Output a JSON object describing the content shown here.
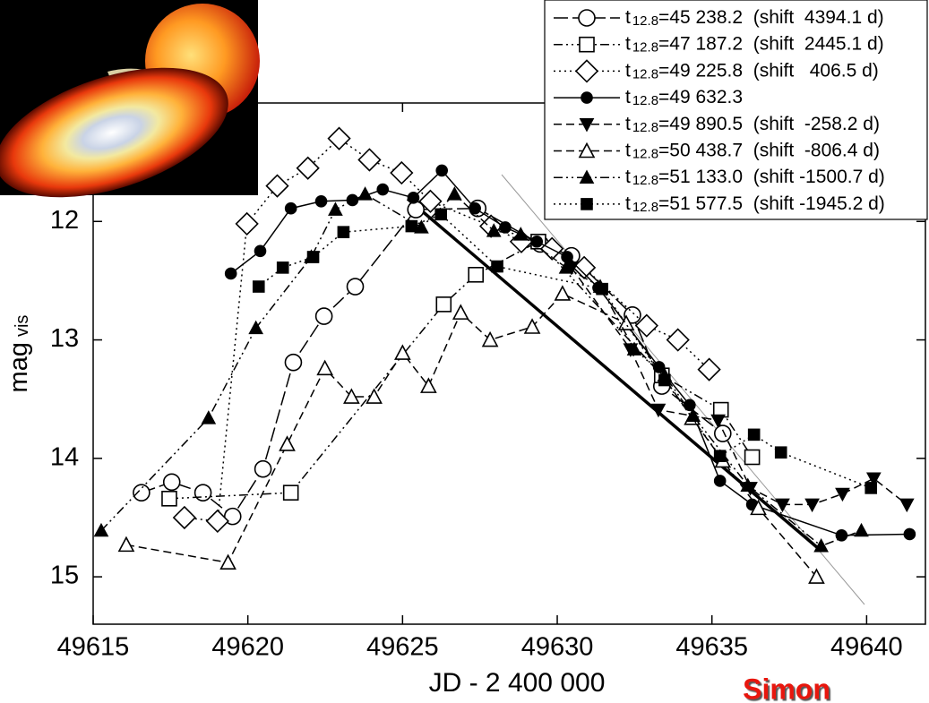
{
  "chart_data": {
    "type": "line",
    "xlabel": "JD - 2 400 000",
    "ylabel": "mag",
    "ylabel_subscript": "vis",
    "legend_symbol": "t",
    "legend_subscript": "12.8",
    "credit": "Simon",
    "xlim": [
      49615,
      49641.9
    ],
    "ylim": [
      11.0,
      15.4
    ],
    "y_inverted": true,
    "xticks": [
      49615,
      49620,
      49625,
      49630,
      49635,
      49640
    ],
    "yticks": [
      12,
      13,
      14,
      15
    ],
    "legend": "top-right",
    "series": [
      {
        "name": "=45 238.2  (shift  4394.1 d)",
        "color": "#000000",
        "marker": "open-circle",
        "linestyle": "longdash",
        "x": [
          49616.56,
          49617.54,
          49618.55,
          49619.51,
          49620.49,
          49621.47,
          49622.46,
          49623.47,
          49625.43,
          49627.43,
          49629.45,
          49630.46,
          49632.43,
          49633.38,
          49635.35
        ],
        "values": [
          14.29,
          14.2,
          14.29,
          14.49,
          14.09,
          13.19,
          12.8,
          12.55,
          11.9,
          11.89,
          12.19,
          12.29,
          12.79,
          13.39,
          13.79
        ]
      },
      {
        "name": "=47 187.2  (shift  2445.1 d)",
        "color": "#000000",
        "marker": "open-square",
        "linestyle": "dashdotdot",
        "x": [
          49617.46,
          49621.39,
          49626.33,
          49627.37,
          49629.39,
          49633.38,
          49635.29,
          49636.3
        ],
        "values": [
          14.34,
          14.29,
          12.7,
          12.45,
          12.17,
          13.3,
          13.59,
          13.99
        ]
      },
      {
        "name": "=49 225.8  (shift   406.5 d)",
        "color": "#000000",
        "marker": "open-diamond",
        "linestyle": "dotted",
        "x": [
          49617.95,
          49619.02,
          49619.97,
          49620.95,
          49621.94,
          49622.95,
          49623.93,
          49624.97,
          49625.9,
          49627.86,
          49628.84,
          49629.83,
          49630.87,
          49632.89,
          49633.9,
          49634.91
        ],
        "values": [
          14.5,
          14.53,
          12.02,
          11.7,
          11.55,
          11.3,
          11.48,
          11.59,
          11.83,
          12.04,
          12.17,
          12.23,
          12.39,
          12.88,
          13.0,
          13.25
        ]
      },
      {
        "name": "=49 632.3",
        "color": "#000000",
        "marker": "filled-circle",
        "linestyle": "solid",
        "x": [
          49619.45,
          49620.4,
          49621.39,
          49622.37,
          49623.38,
          49624.36,
          49625.35,
          49626.27,
          49627.34,
          49628.32,
          49629.34,
          49630.32,
          49631.33,
          49633.29,
          49634.28,
          49635.26,
          49636.3,
          49639.19,
          49641.39
        ],
        "values": [
          12.44,
          12.25,
          11.89,
          11.83,
          11.82,
          11.73,
          11.8,
          11.57,
          11.89,
          12.05,
          12.17,
          12.3,
          12.56,
          13.23,
          13.55,
          14.19,
          14.39,
          14.65,
          14.64
        ]
      },
      {
        "name": "=49 890.5  (shift  -258.2 d)",
        "color": "#000000",
        "marker": "filled-down-triangle",
        "linestyle": "dashed",
        "x": [
          49630.46,
          49632.37,
          49633.27,
          49635.2,
          49636.24,
          49637.28,
          49638.24,
          49639.22,
          49640.23,
          49641.3
        ],
        "values": [
          12.39,
          13.08,
          13.59,
          13.68,
          14.25,
          14.39,
          14.39,
          14.3,
          14.17,
          14.39
        ]
      },
      {
        "name": "=50 438.7  (shift  -806.4 d)",
        "color": "#000000",
        "marker": "open-up-triangle",
        "linestyle": "dashed",
        "x": [
          49616.07,
          49619.36,
          49621.27,
          49622.49,
          49623.35,
          49624.08,
          49625.0,
          49625.84,
          49626.88,
          49627.83,
          49629.19,
          49630.17,
          49632.23,
          49634.36,
          49635.35,
          49636.5,
          49638.38
        ],
        "values": [
          14.73,
          14.88,
          13.88,
          13.24,
          13.48,
          13.48,
          13.11,
          13.39,
          12.77,
          13.0,
          12.89,
          12.61,
          12.86,
          13.66,
          14.02,
          14.42,
          15.0
        ]
      },
      {
        "name": "=51 133.0  (shift -1500.7 d)",
        "color": "#000000",
        "marker": "filled-up-triangle",
        "linestyle": "dashdotdot",
        "x": [
          49615.26,
          49618.73,
          49620.26,
          49622.05,
          49622.83,
          49623.79,
          49625.61,
          49626.68,
          49627.95,
          49628.82,
          49630.29,
          49631.39,
          49632.49,
          49633.47,
          49634.39,
          49636.16,
          49638.53,
          49639.83
        ],
        "values": [
          14.61,
          13.66,
          12.9,
          12.3,
          11.9,
          11.77,
          12.05,
          11.77,
          12.08,
          12.11,
          12.39,
          12.55,
          13.08,
          13.3,
          13.64,
          14.23,
          14.74,
          14.61
        ]
      },
      {
        "name": "=51 577.5  (shift -1945.2 d)",
        "color": "#000000",
        "marker": "filled-square",
        "linestyle": "dotted",
        "x": [
          49620.35,
          49621.13,
          49622.11,
          49623.09,
          49625.29,
          49626.24,
          49628.06,
          49631.45,
          49633.47,
          49635.26,
          49636.36,
          49637.23,
          49640.14
        ],
        "values": [
          12.55,
          12.39,
          12.3,
          12.09,
          12.04,
          11.94,
          12.38,
          12.57,
          13.34,
          13.98,
          13.8,
          13.95,
          14.25
        ]
      }
    ]
  }
}
